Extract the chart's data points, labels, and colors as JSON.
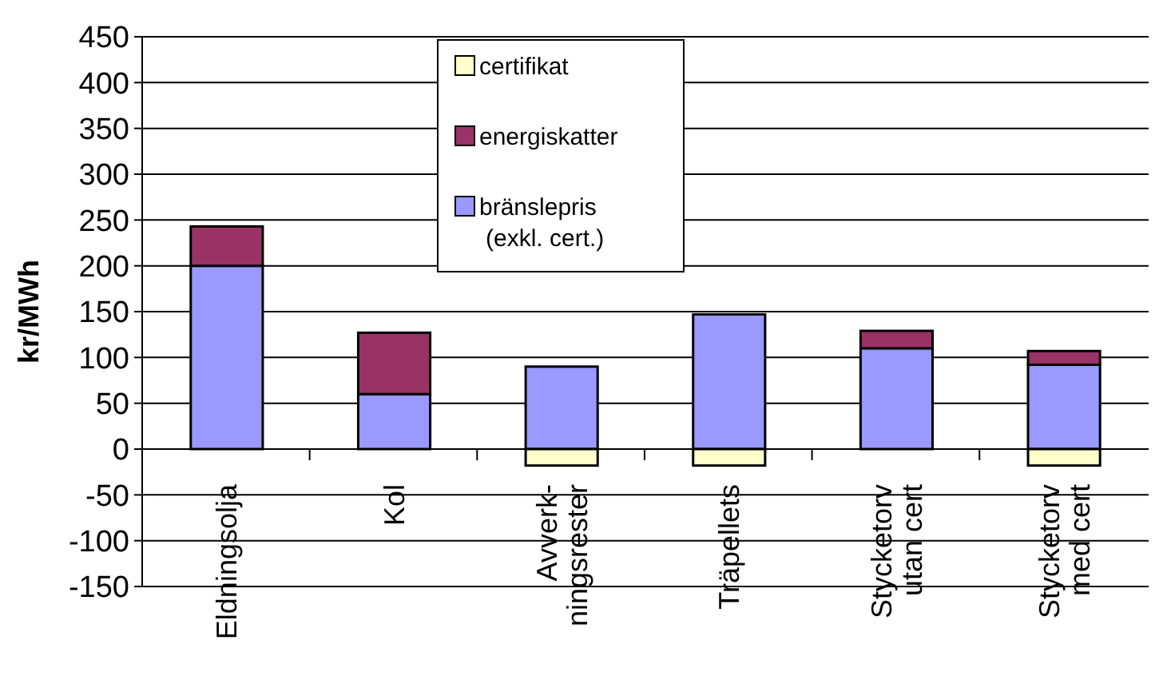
{
  "chart_data": {
    "type": "bar",
    "stacked": true,
    "ylabel": "kr/MWh",
    "categories": [
      "Eldningsolja",
      "Kol",
      "Avverk-\nningsrester",
      "Träpellets",
      "Stycketorv\nutan cert",
      "Stycketorv\nmed cert"
    ],
    "series": [
      {
        "name": "bränslepris\n(exkl. cert.)",
        "color": "#9999ff",
        "values": [
          200,
          60,
          90,
          147,
          110,
          92
        ]
      },
      {
        "name": "energiskatter",
        "color": "#993366",
        "values": [
          43,
          67,
          0,
          0,
          19,
          15
        ]
      },
      {
        "name": "certifikat",
        "color": "#ffffcc",
        "values": [
          0,
          0,
          -18,
          -18,
          0,
          -18
        ]
      }
    ],
    "ylim": [
      -150,
      450
    ],
    "yticks": [
      -150,
      -100,
      -50,
      0,
      50,
      100,
      150,
      200,
      250,
      300,
      350,
      400,
      450
    ],
    "grid": "y",
    "legend": "top"
  }
}
